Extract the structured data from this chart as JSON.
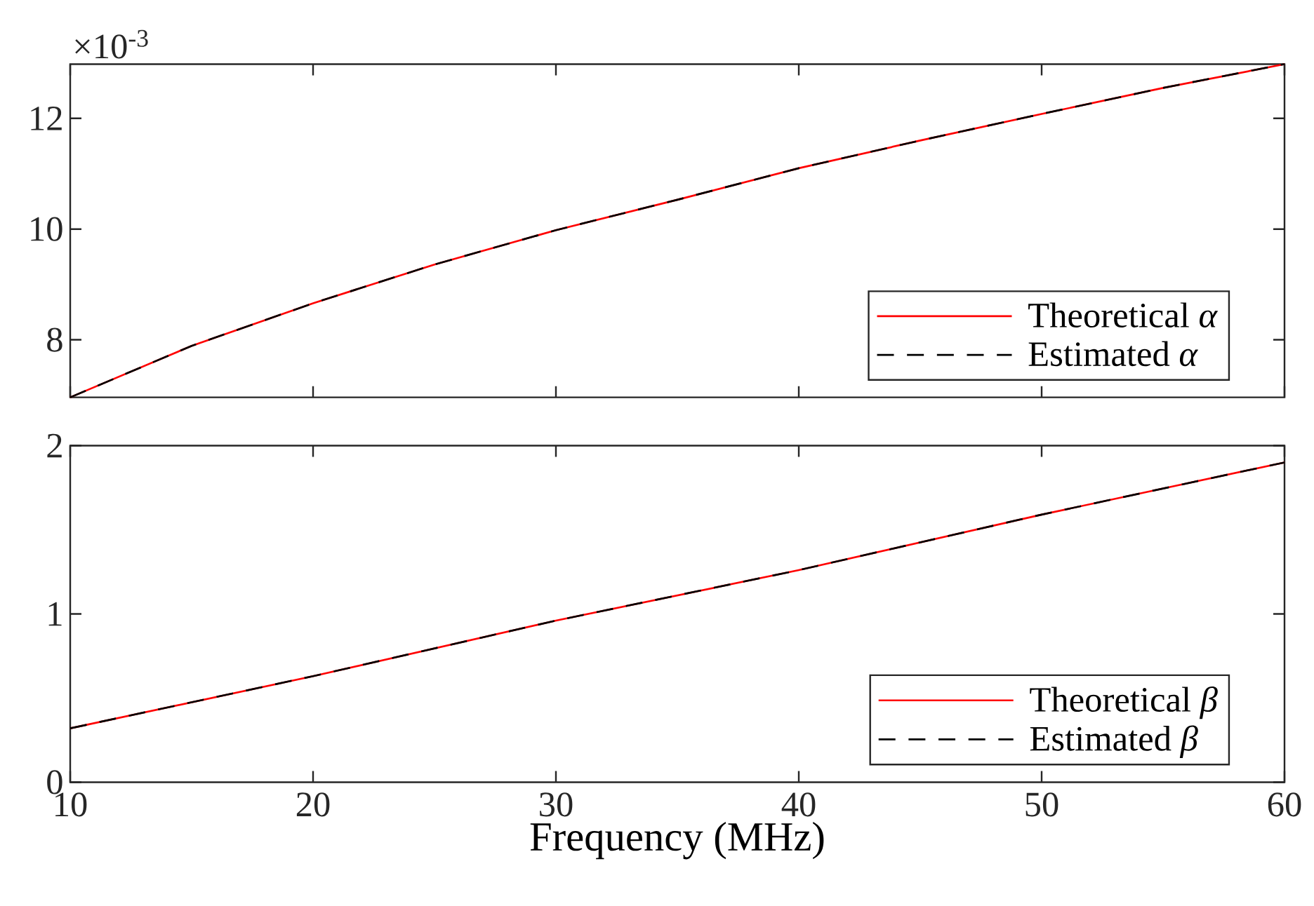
{
  "chart_data": [
    {
      "type": "line",
      "x": [
        10,
        15,
        20,
        25,
        30,
        35,
        40,
        45,
        50,
        55,
        60
      ],
      "series": [
        {
          "name": "Theoretical *α*",
          "color": "#ff0000",
          "line_style": "solid",
          "values": [
            6.96,
            7.89,
            8.66,
            9.36,
            9.98,
            10.53,
            11.1,
            11.6,
            12.08,
            12.55,
            12.98
          ]
        },
        {
          "name": "Estimated *α*",
          "color": "#000000",
          "line_style": "dashed",
          "values": [
            6.96,
            7.89,
            8.66,
            9.36,
            9.98,
            10.53,
            11.1,
            11.6,
            12.08,
            12.55,
            12.98
          ]
        }
      ],
      "xlim": [
        10,
        60
      ],
      "xticks": [
        10,
        20,
        30,
        40,
        50,
        60
      ],
      "ylim": [
        6.96,
        12.98
      ],
      "yticks": [
        8,
        10,
        12
      ],
      "tick_labels": "y",
      "legend": "bottom right",
      "grid": false,
      "annotations": [
        "×10$^{-3}$"
      ]
    },
    {
      "type": "line",
      "x": [
        10,
        20,
        30,
        40,
        50,
        60
      ],
      "series": [
        {
          "name": "Theoretical *β*",
          "color": "#ff0000",
          "line_style": "solid",
          "values": [
            0.32,
            0.63,
            0.96,
            1.26,
            1.59,
            1.9
          ]
        },
        {
          "name": "Estimated *β*",
          "color": "#000000",
          "line_style": "dashed",
          "values": [
            0.32,
            0.63,
            0.96,
            1.26,
            1.59,
            1.9
          ]
        }
      ],
      "xlim": [
        10,
        60
      ],
      "xticks": [
        10,
        20,
        30,
        40,
        50,
        60
      ],
      "ylim": [
        0,
        2
      ],
      "yticks": [
        0,
        1,
        2
      ],
      "xlabel": "Frequency (MHz)",
      "legend": "bottom right",
      "grid": false
    }
  ]
}
